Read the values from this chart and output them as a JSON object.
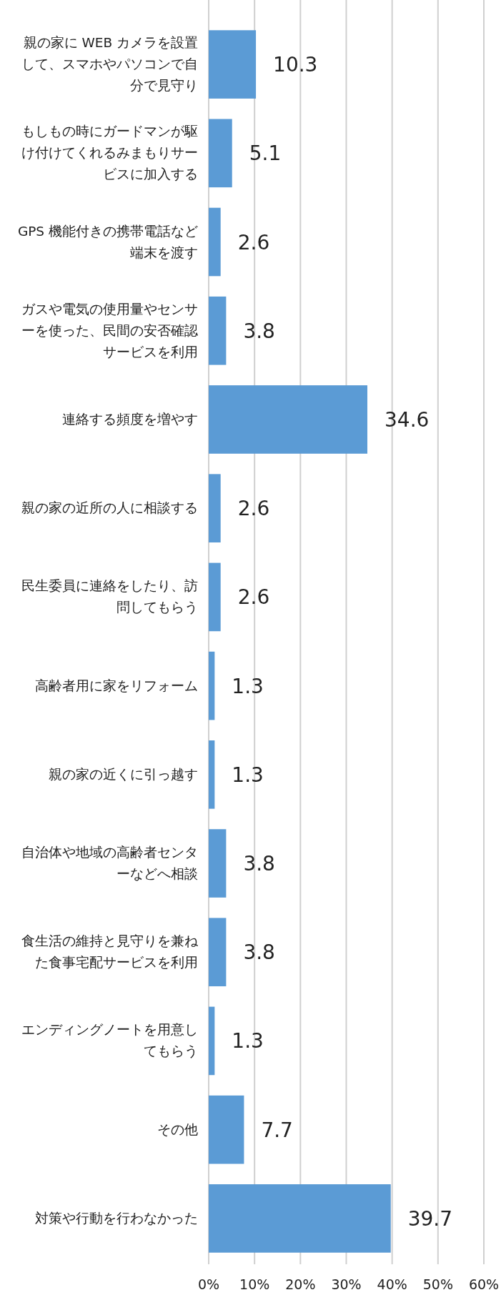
{
  "chart_data": {
    "type": "bar",
    "orientation": "horizontal",
    "categories": [
      "親の家に WEB カメラを設置して、スマホやパソコンで自分で見守り",
      "もしもの時にガードマンが駆け付けてくれるみまもりサービスに加入する",
      "GPS 機能付きの携帯電話など端末を渡す",
      "ガスや電気の使用量やセンサーを使った、民間の安否確認サービスを利用",
      "連絡する頻度を増やす",
      "親の家の近所の人に相談する",
      "民生委員に連絡をしたり、訪問してもらう",
      "高齢者用に家をリフォーム",
      "親の家の近くに引っ越す",
      "自治体や地域の高齢者センターなどへ相談",
      "食生活の維持と見守りを兼ねた食事宅配サービスを利用",
      "エンディングノートを用意してもらう",
      "その他",
      "対策や行動を行わなかった"
    ],
    "values": [
      10.3,
      5.1,
      2.6,
      3.8,
      34.6,
      2.6,
      2.6,
      1.3,
      1.3,
      3.8,
      3.8,
      1.3,
      7.7,
      39.7
    ],
    "color": "#5b9bd5",
    "xlim": [
      0,
      60
    ],
    "xticks": [
      {
        "value": 0,
        "label": "0%"
      },
      {
        "value": 10,
        "label": "10%"
      },
      {
        "value": 20,
        "label": "20%"
      },
      {
        "value": 30,
        "label": "30%"
      },
      {
        "value": 40,
        "label": "40%"
      },
      {
        "value": 50,
        "label": "50%"
      },
      {
        "value": 60,
        "label": "60%"
      }
    ],
    "grid": "x",
    "data_labels": true
  }
}
